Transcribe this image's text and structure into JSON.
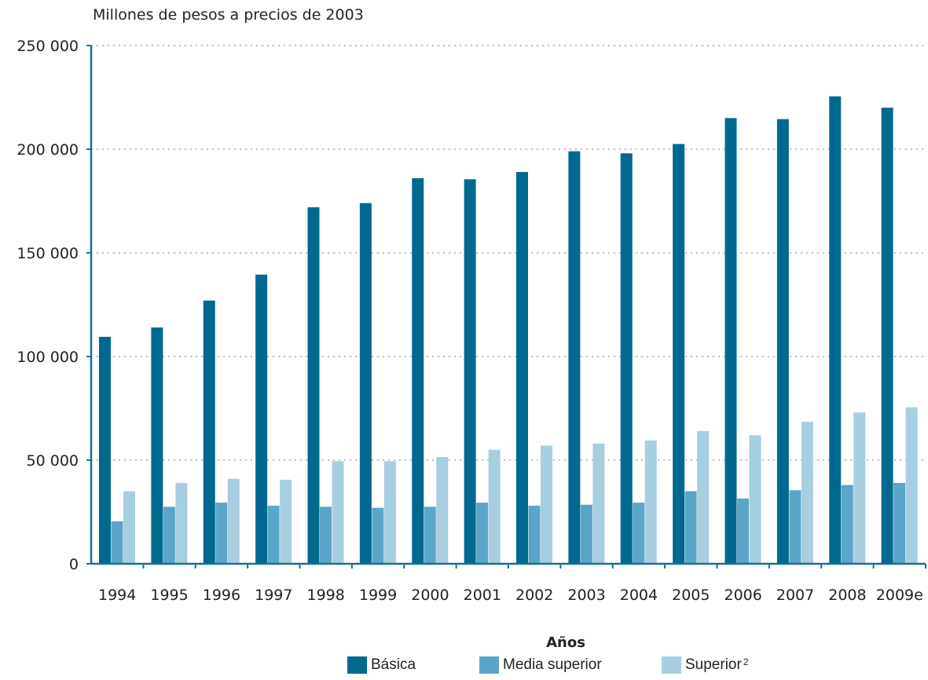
{
  "chart_data": {
    "type": "bar",
    "ylabel": "Millones de pesos a precios de 2003",
    "xlabel": "Años",
    "ylim": [
      0,
      250000
    ],
    "yticks": [
      0,
      50000,
      100000,
      150000,
      200000,
      250000
    ],
    "ytick_labels": [
      "0",
      "50 000",
      "100 000",
      "150 000",
      "200 000",
      "250 000"
    ],
    "grid": true,
    "legend_position": "bottom",
    "categories": [
      "1994",
      "1995",
      "1996",
      "1997",
      "1998",
      "1999",
      "2000",
      "2001",
      "2002",
      "2003",
      "2004",
      "2005",
      "2006",
      "2007",
      "2008",
      "2009e"
    ],
    "series": [
      {
        "name": "Básica",
        "color": "#006990",
        "values": [
          109500,
          114000,
          127000,
          139500,
          172000,
          174000,
          186000,
          185500,
          189000,
          199000,
          198000,
          202500,
          215000,
          214500,
          225500,
          220000
        ]
      },
      {
        "name": "Media superior",
        "color": "#5ba6c8",
        "values": [
          20500,
          27500,
          29500,
          28000,
          27500,
          27000,
          27500,
          29500,
          28000,
          28500,
          29500,
          35000,
          31500,
          35500,
          38000,
          39000
        ]
      },
      {
        "name": "Superior",
        "superscript": "2",
        "color": "#a8cfe0",
        "values": [
          35000,
          39000,
          41000,
          40500,
          49500,
          49500,
          51500,
          55000,
          57000,
          58000,
          59500,
          64000,
          62000,
          68500,
          73000,
          75500
        ]
      }
    ]
  }
}
